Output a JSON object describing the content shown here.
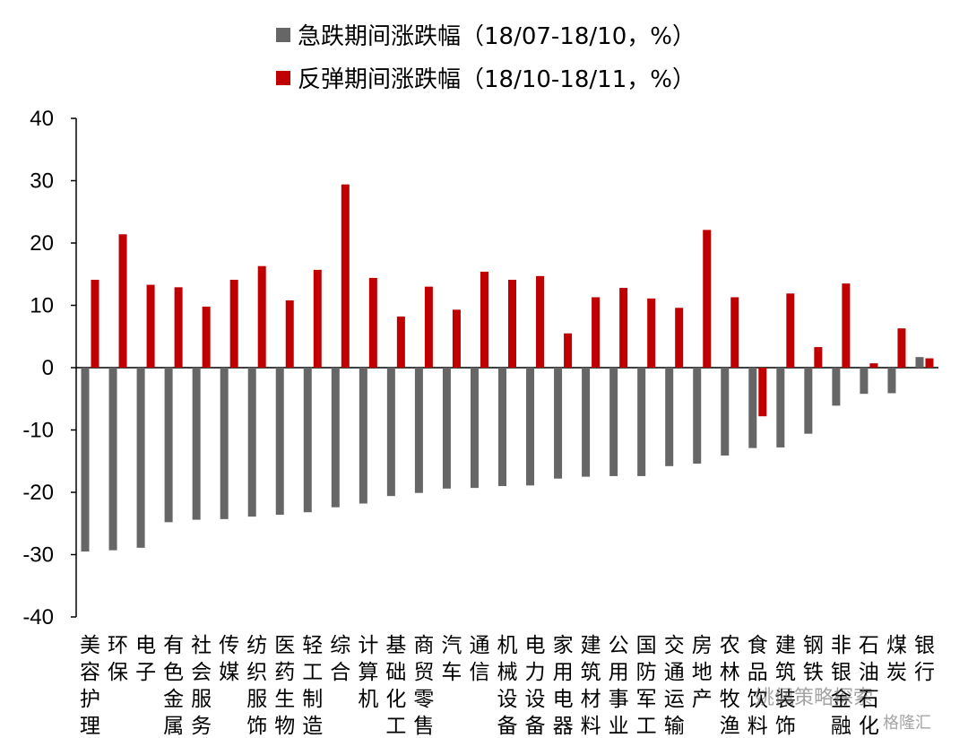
{
  "chart_data": {
    "type": "bar",
    "legend": [
      {
        "name": "急跌期间涨跌幅（18/07-18/10，%）",
        "color": "#666666"
      },
      {
        "name": "反弹期间涨跌幅（18/10-18/11，%）",
        "color": "#c00000"
      }
    ],
    "ylim": [
      -40,
      40
    ],
    "yticks": [
      40,
      30,
      20,
      10,
      0,
      -10,
      -20,
      -30,
      -40
    ],
    "categories": [
      "美容护理",
      "环保",
      "电子",
      "有色金属",
      "社会服务",
      "传媒",
      "纺织服饰",
      "医药生物",
      "轻工制造",
      "综合",
      "计算机",
      "基础化工",
      "商贸零售",
      "汽车",
      "通信",
      "机械设备",
      "电力设备",
      "家用电器",
      "建筑材料",
      "公用事业",
      "国防军工",
      "交通运输",
      "房地产",
      "农林牧渔",
      "食品饮料",
      "建筑装饰",
      "钢铁",
      "非银金融",
      "石油石化",
      "煤炭",
      "银行"
    ],
    "category_lines": [
      [
        "美",
        "容",
        "护",
        "理"
      ],
      [
        "环",
        "保"
      ],
      [
        "电",
        "子"
      ],
      [
        "有",
        "色",
        "金",
        "属"
      ],
      [
        "社",
        "会",
        "服",
        "务"
      ],
      [
        "传",
        "媒"
      ],
      [
        "纺",
        "织",
        "服",
        "饰"
      ],
      [
        "医",
        "药",
        "生",
        "物"
      ],
      [
        "轻",
        "工",
        "制",
        "造"
      ],
      [
        "综",
        "合"
      ],
      [
        "计",
        "算",
        "机"
      ],
      [
        "基",
        "础",
        "化",
        "工"
      ],
      [
        "商",
        "贸",
        "零",
        "售"
      ],
      [
        "汽",
        "车"
      ],
      [
        "通",
        "信"
      ],
      [
        "机",
        "械",
        "设",
        "备"
      ],
      [
        "电",
        "力",
        "设",
        "备"
      ],
      [
        "家",
        "用",
        "电",
        "器"
      ],
      [
        "建",
        "筑",
        "材",
        "料"
      ],
      [
        "公",
        "用",
        "事",
        "业"
      ],
      [
        "国",
        "防",
        "军",
        "工"
      ],
      [
        "交",
        "通",
        "运",
        "输"
      ],
      [
        "房",
        "地",
        "产"
      ],
      [
        "农",
        "林",
        "牧",
        "渔"
      ],
      [
        "食",
        "品",
        "饮",
        "料"
      ],
      [
        "建",
        "筑",
        "装",
        "饰"
      ],
      [
        "钢",
        "铁"
      ],
      [
        "非",
        "银",
        "金",
        "融"
      ],
      [
        "石",
        "油",
        "石",
        "化"
      ],
      [
        "煤",
        "炭"
      ],
      [
        "银",
        "行"
      ]
    ],
    "series": [
      {
        "name": "急跌期间涨跌幅（18/07-18/10，%）",
        "values": [
          -29.5,
          -29.3,
          -28.9,
          -24.8,
          -24.4,
          -24.3,
          -23.9,
          -23.6,
          -23.2,
          -22.4,
          -21.8,
          -20.6,
          -20.1,
          -19.4,
          -19.3,
          -19.0,
          -18.9,
          -17.8,
          -17.5,
          -17.4,
          -17.4,
          -15.8,
          -15.4,
          -14.1,
          -12.9,
          -12.8,
          -10.6,
          -6.1,
          -4.2,
          -4.1,
          1.7
        ]
      },
      {
        "name": "反弹期间涨跌幅（18/10-18/11，%）",
        "values": [
          14.1,
          21.4,
          13.3,
          12.9,
          9.8,
          14.1,
          16.3,
          10.8,
          15.7,
          29.4,
          14.4,
          8.2,
          13.0,
          9.3,
          15.4,
          14.1,
          14.7,
          5.5,
          11.3,
          12.8,
          11.1,
          9.6,
          22.1,
          11.3,
          -7.8,
          11.9,
          3.3,
          13.5,
          0.7,
          6.3,
          1.5
        ]
      }
    ]
  },
  "watermark": {
    "text1": "姚佩策略探索",
    "text2": "格隆汇"
  }
}
